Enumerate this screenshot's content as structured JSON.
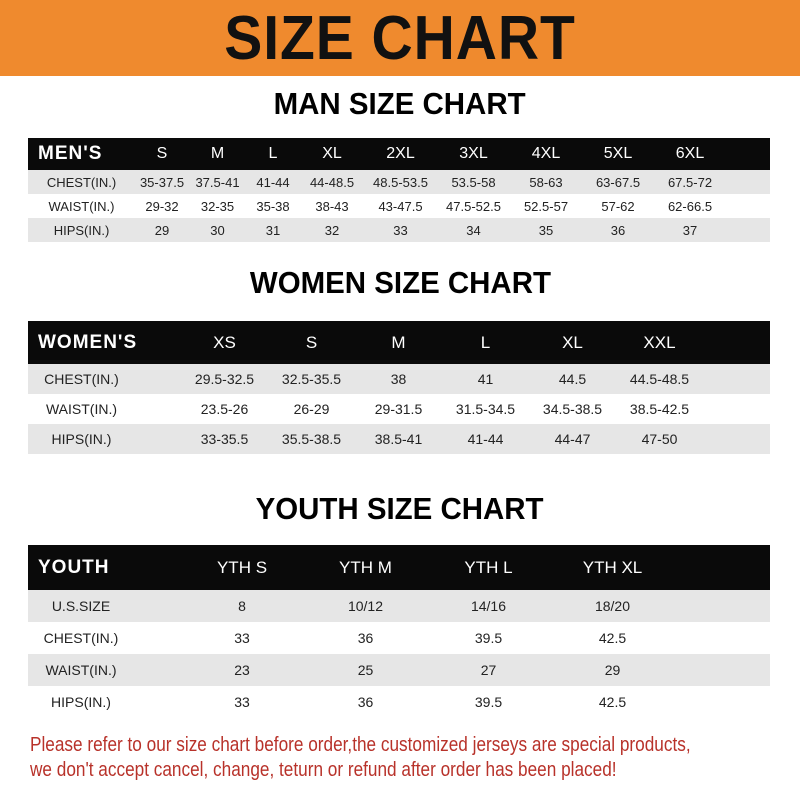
{
  "banner_title": "SIZE CHART",
  "men": {
    "title": "MAN SIZE CHART",
    "header": [
      "MEN'S",
      "S",
      "M",
      "L",
      "XL",
      "2XL",
      "3XL",
      "4XL",
      "5XL",
      "6XL"
    ],
    "rows": [
      [
        "CHEST(IN.)",
        "35-37.5",
        "37.5-41",
        "41-44",
        "44-48.5",
        "48.5-53.5",
        "53.5-58",
        "58-63",
        "63-67.5",
        "67.5-72"
      ],
      [
        "WAIST(IN.)",
        "29-32",
        "32-35",
        "35-38",
        "38-43",
        "43-47.5",
        "47.5-52.5",
        "52.5-57",
        "57-62",
        "62-66.5"
      ],
      [
        "HIPS(IN.)",
        "29",
        "30",
        "31",
        "32",
        "33",
        "34",
        "35",
        "36",
        "37"
      ]
    ]
  },
  "women": {
    "title": "WOMEN SIZE CHART",
    "header": [
      "WOMEN'S",
      "XS",
      "S",
      "M",
      "L",
      "XL",
      "XXL"
    ],
    "rows": [
      [
        "CHEST(IN.)",
        "29.5-32.5",
        "32.5-35.5",
        "38",
        "41",
        "44.5",
        "44.5-48.5"
      ],
      [
        "WAIST(IN.)",
        "23.5-26",
        "26-29",
        "29-31.5",
        "31.5-34.5",
        "34.5-38.5",
        "38.5-42.5"
      ],
      [
        "HIPS(IN.)",
        "33-35.5",
        "35.5-38.5",
        "38.5-41",
        "41-44",
        "44-47",
        "47-50"
      ]
    ]
  },
  "youth": {
    "title": "YOUTH SIZE CHART",
    "header": [
      "YOUTH",
      "YTH S",
      "YTH M",
      "YTH L",
      "YTH XL"
    ],
    "rows": [
      [
        "U.S.SIZE",
        "8",
        "10/12",
        "14/16",
        "18/20"
      ],
      [
        "CHEST(IN.)",
        "33",
        "36",
        "39.5",
        "42.5"
      ],
      [
        "WAIST(IN.)",
        "23",
        "25",
        "27",
        "29"
      ],
      [
        "HIPS(IN.)",
        "33",
        "36",
        "39.5",
        "42.5"
      ]
    ]
  },
  "note": [
    "Please refer to our size chart before order,the customized jerseys are special products,",
    "we don't accept cancel, change, teturn or refund after order has been placed!"
  ],
  "colors": {
    "banner": "#ef8a2e",
    "header_row": "#0a0a0a",
    "stripe": "#e6e6e6",
    "note": "#b8322a"
  }
}
